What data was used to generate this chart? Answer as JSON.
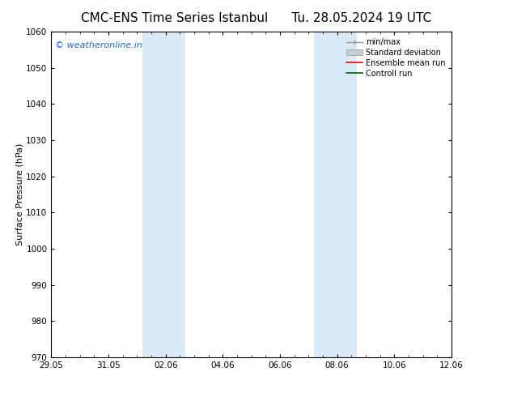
{
  "title_left": "CMC-ENS Time Series Istanbul",
  "title_right": "Tu. 28.05.2024 19 UTC",
  "ylabel": "Surface Pressure (hPa)",
  "ylim": [
    970,
    1060
  ],
  "yticks": [
    970,
    980,
    990,
    1000,
    1010,
    1020,
    1030,
    1040,
    1050,
    1060
  ],
  "xlim": [
    0,
    14
  ],
  "xlabel_dates": [
    "29.05",
    "31.05",
    "02.06",
    "04.06",
    "06.06",
    "08.06",
    "10.06",
    "12.06"
  ],
  "xlabel_offsets": [
    0,
    2,
    4,
    6,
    8,
    10,
    12,
    14
  ],
  "shaded_bands": [
    {
      "x_start": 3.2,
      "x_end": 4.7
    },
    {
      "x_start": 9.2,
      "x_end": 10.7
    }
  ],
  "shade_color": "#daeaf7",
  "background_color": "#ffffff",
  "watermark_text": "© weatheronline.in",
  "watermark_color": "#1a6bc1",
  "watermark_fontsize": 8,
  "title_fontsize": 11,
  "tick_fontsize": 7.5,
  "ylabel_fontsize": 8,
  "legend_fontsize": 7,
  "spine_color": "#000000",
  "tick_color": "#000000"
}
